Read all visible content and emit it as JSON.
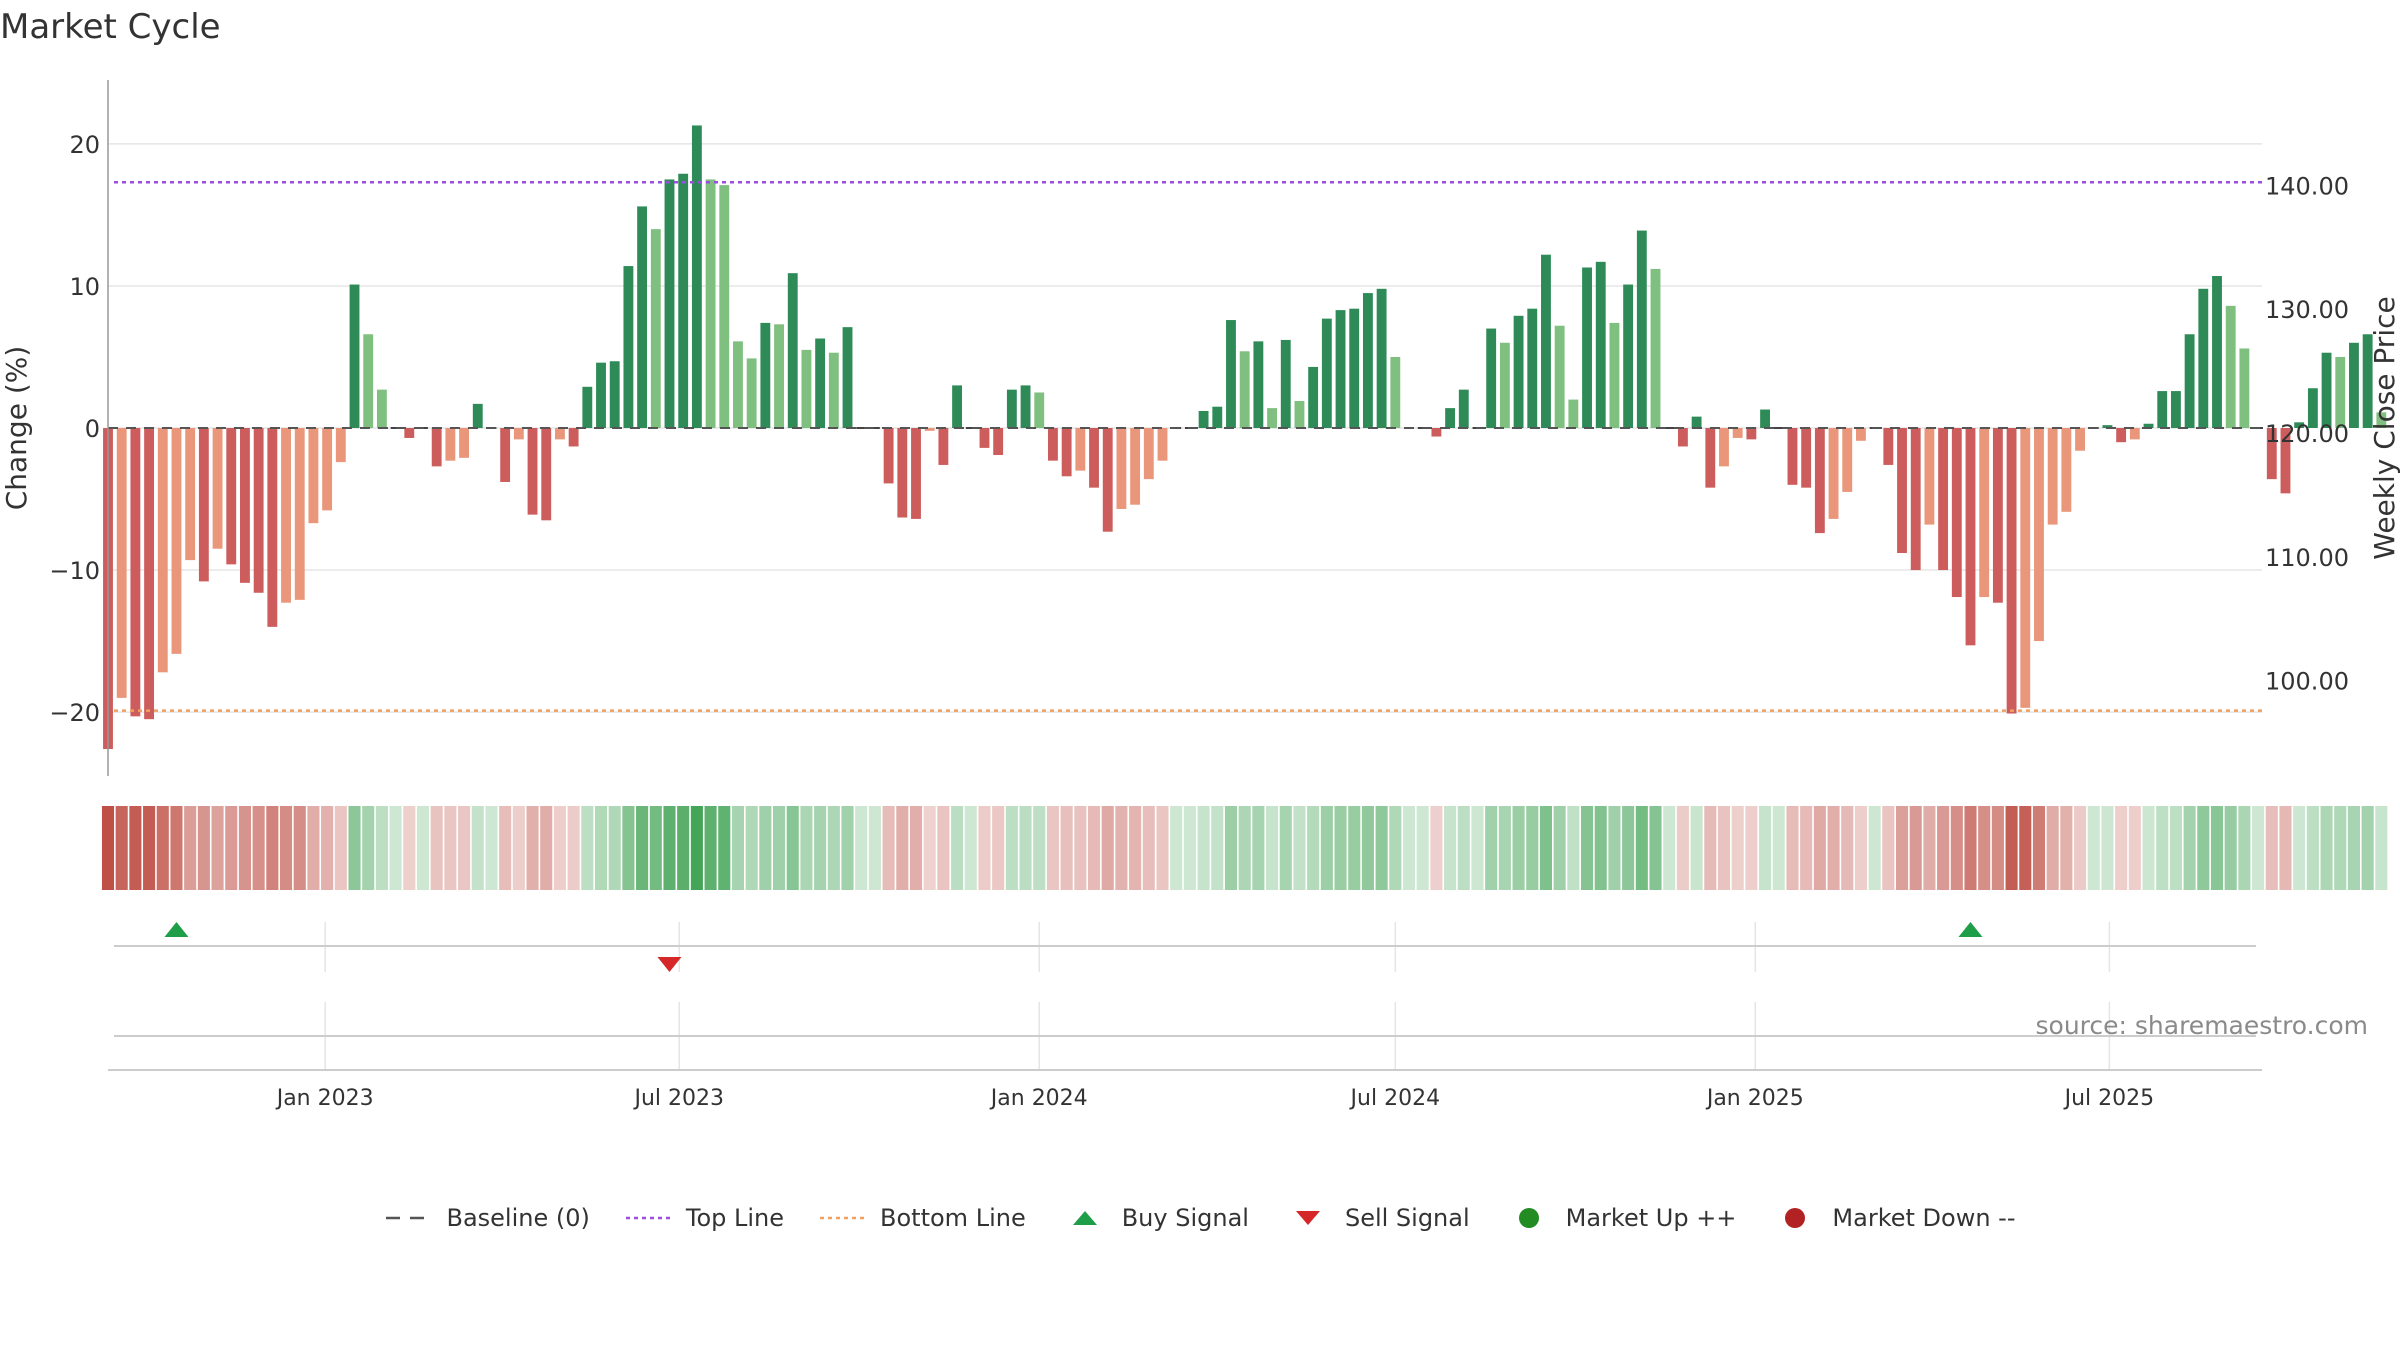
{
  "chart_data": {
    "type": "bar",
    "title": "Market Cycle",
    "ylabel": "Change (%)",
    "y2label": "Weekly Close Price",
    "ylim": [
      -24.5,
      24.5
    ],
    "y2lim": [
      92.3,
      148.5
    ],
    "yticks": [
      -20,
      -10,
      0,
      10,
      20
    ],
    "ytick_labels": [
      "−20",
      "−10",
      "0",
      "10",
      "20"
    ],
    "y2ticks": [
      100,
      110,
      120,
      130,
      140
    ],
    "y2tick_labels": [
      "100.00",
      "110.00",
      "120.00",
      "130.00",
      "140.00"
    ],
    "x_start": "2022-09-12",
    "x_end": "2025-09-17",
    "bar_dates_start": "2022-09-12",
    "bar_interval_days": 7,
    "xticks": [
      "2023-01-01",
      "2023-07-01",
      "2024-01-01",
      "2024-07-01",
      "2025-01-01",
      "2025-07-01"
    ],
    "xtick_labels": [
      "Jan 2023",
      "Jul 2023",
      "Jan 2024",
      "Jul 2024",
      "Jan 2025",
      "Jul 2025"
    ],
    "top_line": 17.3,
    "bottom_line": -19.9,
    "baseline": 0,
    "values": [
      -22.6,
      -19.0,
      -20.3,
      -20.5,
      -17.2,
      -15.9,
      -9.3,
      -10.8,
      -8.5,
      -9.6,
      -10.9,
      -11.6,
      -14.0,
      -12.3,
      -12.1,
      -6.7,
      -5.8,
      -2.4,
      10.1,
      6.6,
      2.7,
      0.0,
      -0.7,
      0.0,
      -2.7,
      -2.3,
      -2.1,
      1.7,
      0.0,
      -3.8,
      -0.8,
      -6.1,
      -6.5,
      -0.8,
      -1.3,
      2.9,
      4.6,
      4.7,
      11.4,
      15.6,
      14.0,
      17.5,
      17.9,
      21.3,
      17.5,
      17.1,
      6.1,
      4.9,
      7.4,
      7.3,
      10.9,
      5.5,
      6.3,
      5.3,
      7.1,
      0.0,
      0.0,
      -3.9,
      -6.3,
      -6.4,
      -0.2,
      -2.6,
      3.0,
      0.0,
      -1.4,
      -1.9,
      2.7,
      3.0,
      2.5,
      -2.3,
      -3.4,
      -3.0,
      -4.2,
      -7.3,
      -5.7,
      -5.4,
      -3.6,
      -2.3,
      0.0,
      0.0,
      1.2,
      1.5,
      7.6,
      5.4,
      6.1,
      1.4,
      6.2,
      1.9,
      4.3,
      7.7,
      8.3,
      8.4,
      9.5,
      9.8,
      5.0,
      0.0,
      0.0,
      -0.6,
      1.4,
      2.7,
      0.0,
      7.0,
      6.0,
      7.9,
      8.4,
      12.2,
      7.2,
      2.0,
      11.3,
      11.7,
      7.4,
      10.1,
      13.9,
      11.2,
      0.0,
      -1.3,
      0.8,
      -4.2,
      -2.7,
      -0.7,
      -0.8,
      1.3,
      0.0,
      -4.0,
      -4.2,
      -7.4,
      -6.4,
      -4.5,
      -0.9,
      0.0,
      -2.6,
      -8.8,
      -10.0,
      -6.8,
      -10.0,
      -11.9,
      -15.3,
      -11.9,
      -12.3,
      -20.1,
      -19.7,
      -15.0,
      -6.8,
      -5.9,
      -1.6,
      0.0,
      0.2,
      -1.0,
      -0.8,
      0.3,
      2.6,
      2.6,
      6.6,
      9.8,
      10.7,
      8.6,
      5.6,
      0.0,
      -3.6,
      -4.6,
      0.4,
      2.8,
      5.3,
      5.0,
      6.0,
      6.6,
      1.1
    ],
    "colors": {
      "up_strong": "#2e8b57",
      "up_weak": "#7fbf7f",
      "down_strong": "#cd5c5c",
      "down_weak": "#e9967a",
      "top_line": "#9b4de0",
      "bottom_line": "#f0a060",
      "baseline": "#555555",
      "buy": "#1f9e4a",
      "sell": "#d62728",
      "market_up": "#228b22",
      "market_down": "#b22222",
      "grid": "#e5e5e5"
    },
    "buy_signals": [
      "2022-10-17",
      "2025-04-21"
    ],
    "sell_signals": [
      "2023-06-26"
    ],
    "legend": [
      {
        "label": "Baseline (0)",
        "icon": "dash-line",
        "color": "#555555"
      },
      {
        "label": "Top Line",
        "icon": "dotted-line",
        "color": "#9b4de0"
      },
      {
        "label": "Bottom Line",
        "icon": "dotted-line",
        "color": "#f0a060"
      },
      {
        "label": "Buy Signal",
        "icon": "triangle-up",
        "color": "#1f9e4a"
      },
      {
        "label": "Sell Signal",
        "icon": "triangle-down",
        "color": "#d62728"
      },
      {
        "label": "Market Up ++",
        "icon": "circle",
        "color": "#228b22"
      },
      {
        "label": "Market Down --",
        "icon": "circle",
        "color": "#b22222"
      }
    ],
    "annotation": "source: sharemaestro.com"
  }
}
